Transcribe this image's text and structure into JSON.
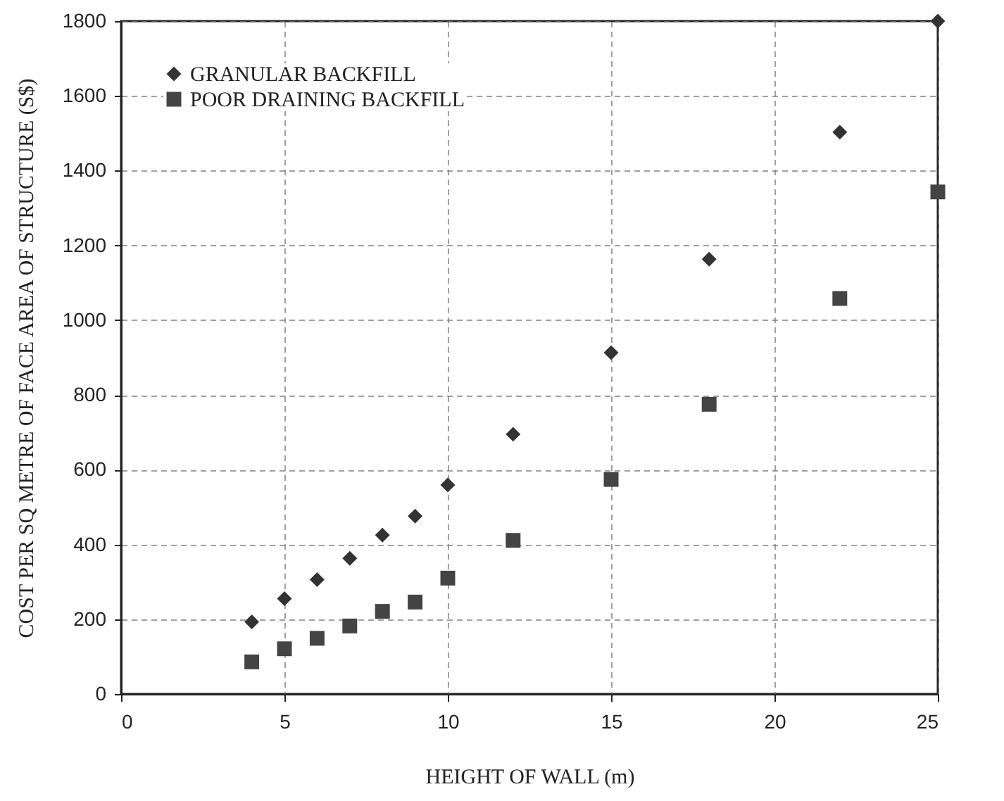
{
  "chart_data": {
    "type": "scatter",
    "xlabel": "HEIGHT OF WALL (m)",
    "ylabel": "COST PER SQ METRE OF FACE AREA OF STRUCTURE (S$)",
    "x": [
      4,
      5,
      6,
      7,
      8,
      9,
      10,
      12,
      15,
      18,
      22,
      25
    ],
    "series": [
      {
        "name": "GRANULAR BACKFILL",
        "color": "#333333",
        "marker": "diamond",
        "values": [
          193,
          255,
          306,
          363,
          425,
          476,
          559,
          695,
          913,
          1163,
          1503,
          1800
        ]
      },
      {
        "name": "POOR DRAINING BACKFILL",
        "color": "#444444",
        "marker": "square",
        "values": [
          86,
          121,
          149,
          182,
          221,
          246,
          310,
          411,
          574,
          775,
          1058,
          1343
        ]
      }
    ],
    "xlim": [
      0,
      25
    ],
    "xticks": [
      0,
      5,
      10,
      15,
      20,
      25
    ],
    "ylim": [
      0,
      1800
    ],
    "yticks": [
      0,
      200,
      400,
      600,
      800,
      1000,
      1200,
      1400,
      1600,
      1800
    ],
    "grid": true,
    "legend": "top left"
  }
}
